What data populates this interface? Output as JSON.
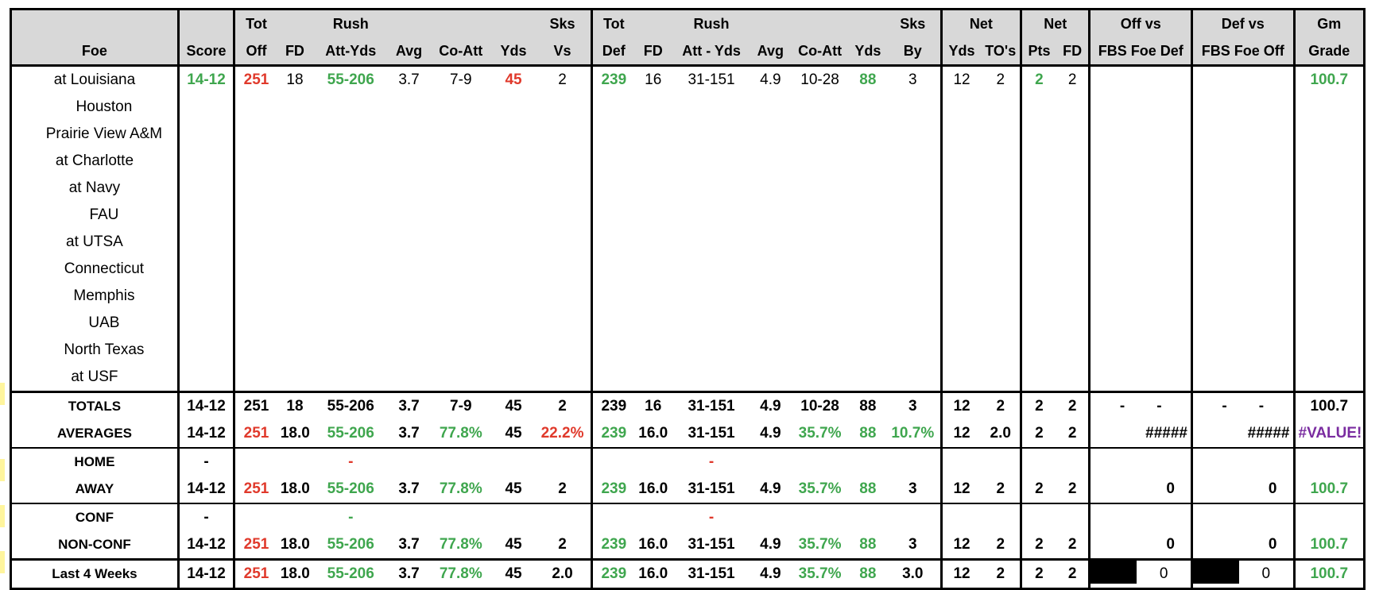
{
  "header": {
    "row1": [
      "",
      "",
      "Tot",
      "",
      "Rush",
      "",
      "",
      "",
      "Sks",
      "Tot",
      "",
      "Rush",
      "",
      "",
      "",
      "Sks",
      "Net",
      "",
      "Net",
      "",
      "Off vs",
      "Def vs",
      "Gm"
    ],
    "row2": [
      "Foe",
      "Score",
      "Off",
      "FD",
      "Att-Yds",
      "Avg",
      "Co-Att",
      "Yds",
      "Vs",
      "Def",
      "FD",
      "Att - Yds",
      "Avg",
      "Co-Att",
      "Yds",
      "By",
      "Yds",
      "TO's",
      "Pts",
      "FD",
      "FBS Foe Def",
      "FBS Foe Off",
      "Grade"
    ]
  },
  "games": [
    {
      "foe": "at Louisiana",
      "indent": false,
      "score": "14-12",
      "tot_off": "251",
      "fd": "18",
      "rush": "55-206",
      "avg": "3.7",
      "co_att": "7-9",
      "yds": "45",
      "sks_vs": "2",
      "tot_def": "239",
      "dfd": "16",
      "drush": "31-151",
      "davg": "4.9",
      "dco_att": "10-28",
      "dyds": "88",
      "sks_by": "3",
      "net_yds": "12",
      "tos": "2",
      "net_pts": "2",
      "net_fd": "2",
      "off_fbs": "",
      "def_fbs": "",
      "grade": "100.7"
    },
    {
      "foe": "Houston",
      "indent": true
    },
    {
      "foe": "Prairie View A&M",
      "indent": true
    },
    {
      "foe": "at Charlotte",
      "indent": false
    },
    {
      "foe": "at Navy",
      "indent": false
    },
    {
      "foe": "FAU",
      "indent": true
    },
    {
      "foe": "at UTSA",
      "indent": false
    },
    {
      "foe": "Connecticut",
      "indent": true
    },
    {
      "foe": "Memphis",
      "indent": true
    },
    {
      "foe": "UAB",
      "indent": true
    },
    {
      "foe": "North Texas",
      "indent": true
    },
    {
      "foe": "at USF",
      "indent": false
    }
  ],
  "totals": {
    "label": "TOTALS",
    "score": "14-12",
    "tot_off": "251",
    "fd": "18",
    "rush": "55-206",
    "avg": "3.7",
    "co_att": "7-9",
    "yds": "45",
    "sks_vs": "2",
    "tot_def": "239",
    "dfd": "16",
    "drush": "31-151",
    "davg": "4.9",
    "dco_att": "10-28",
    "dyds": "88",
    "sks_by": "3",
    "net_yds": "12",
    "tos": "2",
    "net_pts": "2",
    "net_fd": "2",
    "off_a": "-",
    "off_b": "-",
    "def_a": "-",
    "def_b": "-",
    "grade": "100.7"
  },
  "averages": {
    "label": "AVERAGES",
    "score": "14-12",
    "tot_off": "251",
    "fd": "18.0",
    "rush": "55-206",
    "avg": "3.7",
    "co_att": "77.8%",
    "yds": "45",
    "sks_vs": "22.2%",
    "tot_def": "239",
    "dfd": "16.0",
    "drush": "31-151",
    "davg": "4.9",
    "dco_att": "35.7%",
    "dyds": "88",
    "sks_by": "10.7%",
    "net_yds": "12",
    "tos": "2.0",
    "net_pts": "2",
    "net_fd": "2",
    "off_fbs": "#####",
    "def_fbs": "#####",
    "grade": "#VALUE!"
  },
  "home": {
    "label": "HOME",
    "score": "-",
    "rush": "-",
    "drush": "-"
  },
  "away": {
    "label": "AWAY",
    "score": "14-12",
    "tot_off": "251",
    "fd": "18.0",
    "rush": "55-206",
    "avg": "3.7",
    "co_att": "77.8%",
    "yds": "45",
    "sks_vs": "2",
    "tot_def": "239",
    "dfd": "16.0",
    "drush": "31-151",
    "davg": "4.9",
    "dco_att": "35.7%",
    "dyds": "88",
    "sks_by": "3",
    "net_yds": "12",
    "tos": "2",
    "net_pts": "2",
    "net_fd": "2",
    "off_fbs": "0",
    "def_fbs": "0",
    "grade": "100.7"
  },
  "conf": {
    "label": "CONF",
    "score": "-",
    "rush": "-",
    "drush": "-"
  },
  "nonconf": {
    "label": "NON-CONF",
    "score": "14-12",
    "tot_off": "251",
    "fd": "18.0",
    "rush": "55-206",
    "avg": "3.7",
    "co_att": "77.8%",
    "yds": "45",
    "sks_vs": "2",
    "tot_def": "239",
    "dfd": "16.0",
    "drush": "31-151",
    "davg": "4.9",
    "dco_att": "35.7%",
    "dyds": "88",
    "sks_by": "3",
    "net_yds": "12",
    "tos": "2",
    "net_pts": "2",
    "net_fd": "2",
    "off_fbs": "0",
    "def_fbs": "0",
    "grade": "100.7"
  },
  "last4": {
    "label": "Last 4 Weeks",
    "score": "14-12",
    "tot_off": "251",
    "fd": "18.0",
    "rush": "55-206",
    "avg": "3.7",
    "co_att": "77.8%",
    "yds": "45",
    "sks_vs": "2.0",
    "tot_def": "239",
    "dfd": "16.0",
    "drush": "31-151",
    "davg": "4.9",
    "dco_att": "35.7%",
    "dyds": "88",
    "sks_by": "3.0",
    "net_yds": "12",
    "tos": "2",
    "net_pts": "2",
    "net_fd": "2",
    "off_fbs": "0",
    "def_fbs": "0",
    "grade": "100.7"
  },
  "colors": {
    "green": "#3fa64e",
    "red": "#e0392b",
    "purple": "#7a2ca0",
    "header_bg": "#d8d8d8",
    "marker": "#fff59d"
  }
}
